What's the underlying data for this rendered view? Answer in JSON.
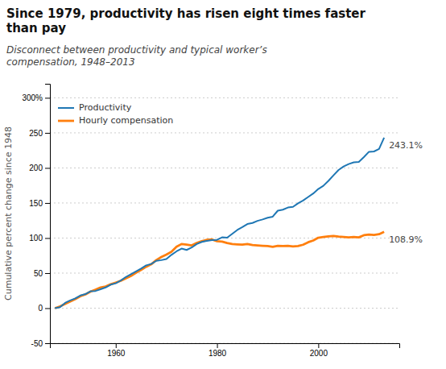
{
  "chart_data": {
    "type": "line",
    "title": "Since 1979, productivity has risen eight times faster\nthan pay",
    "subtitle": "Disconnect between productivity and typical worker’s\ncompensation, 1948–2013",
    "y_label": "Cumulative percent change since 1948",
    "x": [
      1948,
      1949,
      1950,
      1951,
      1952,
      1953,
      1954,
      1955,
      1956,
      1957,
      1958,
      1959,
      1960,
      1961,
      1962,
      1963,
      1964,
      1965,
      1966,
      1967,
      1968,
      1969,
      1970,
      1971,
      1972,
      1973,
      1974,
      1975,
      1976,
      1977,
      1978,
      1979,
      1980,
      1981,
      1982,
      1983,
      1984,
      1985,
      1986,
      1987,
      1988,
      1989,
      1990,
      1991,
      1992,
      1993,
      1994,
      1995,
      1996,
      1997,
      1998,
      1999,
      2000,
      2001,
      2002,
      2003,
      2004,
      2005,
      2006,
      2007,
      2008,
      2009,
      2010,
      2011,
      2012,
      2013
    ],
    "series": [
      {
        "name": "Productivity",
        "values": [
          0.0,
          1.5,
          7.5,
          11.0,
          14.0,
          18.0,
          20.0,
          24.0,
          24.5,
          27.0,
          29.5,
          33.5,
          35.5,
          39.5,
          44.5,
          48.5,
          52.5,
          56.5,
          61.0,
          63.0,
          67.5,
          68.5,
          70.0,
          76.0,
          81.0,
          85.0,
          83.0,
          86.5,
          91.5,
          94.5,
          96.0,
          97.0,
          97.5,
          101.0,
          100.5,
          106.0,
          111.5,
          115.5,
          120.0,
          121.5,
          124.5,
          126.5,
          129.0,
          130.5,
          139.0,
          140.5,
          143.5,
          144.5,
          149.5,
          153.5,
          158.5,
          163.5,
          170.0,
          174.5,
          181.5,
          189.5,
          197.0,
          202.0,
          205.5,
          208.0,
          208.5,
          215.5,
          223.0,
          223.5,
          227.0,
          243.1
        ]
      },
      {
        "name": "Hourly compensation",
        "values": [
          0.0,
          2.5,
          6.0,
          9.5,
          13.0,
          17.0,
          19.5,
          23.5,
          26.5,
          29.5,
          31.0,
          34.0,
          36.5,
          39.0,
          42.5,
          46.0,
          50.5,
          54.5,
          59.0,
          62.5,
          68.5,
          73.0,
          76.5,
          80.5,
          87.5,
          91.5,
          90.5,
          89.5,
          93.0,
          95.5,
          97.5,
          98.0,
          95.5,
          95.0,
          93.0,
          91.5,
          91.0,
          90.5,
          91.5,
          90.0,
          89.5,
          89.0,
          88.5,
          87.5,
          89.0,
          88.5,
          89.0,
          88.0,
          88.5,
          90.5,
          94.0,
          96.5,
          100.5,
          101.5,
          102.5,
          103.0,
          102.0,
          101.5,
          101.0,
          101.5,
          101.0,
          104.0,
          105.0,
          104.5,
          105.5,
          108.9
        ]
      }
    ],
    "annotations": [
      {
        "text": "243.1%",
        "x": 2013,
        "y": 243.1
      },
      {
        "text": "108.9%",
        "x": 2013,
        "y": 108.9
      }
    ],
    "xlim": [
      1947,
      2016
    ],
    "xticks": [
      1960,
      1980,
      2000
    ],
    "ylim": [
      -50,
      320
    ],
    "yticks": [
      -50,
      0,
      50,
      100,
      150,
      200,
      250,
      {
        "value": 300,
        "label": "300%"
      }
    ],
    "grid": true,
    "legend": "upper left"
  }
}
